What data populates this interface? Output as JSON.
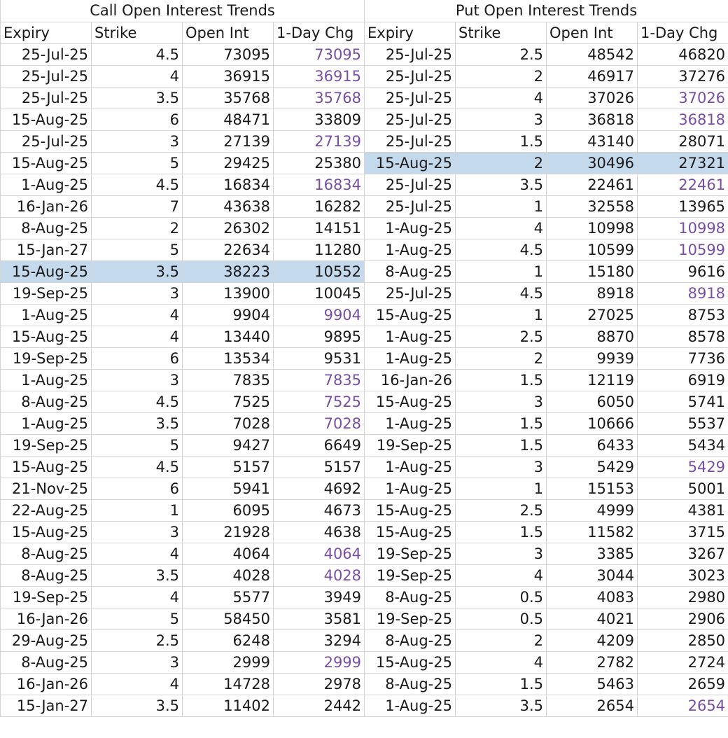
{
  "tables": [
    {
      "title": "Call Open Interest Trends",
      "headers": [
        "Expiry",
        "Strike",
        "Open Int",
        "1-Day Chg"
      ],
      "highlight_row": 10,
      "rows": [
        {
          "expiry": "25-Jul-25",
          "strike": "4.5",
          "open_int": "73095",
          "chg": "73095",
          "new": true
        },
        {
          "expiry": "25-Jul-25",
          "strike": "4",
          "open_int": "36915",
          "chg": "36915",
          "new": true
        },
        {
          "expiry": "25-Jul-25",
          "strike": "3.5",
          "open_int": "35768",
          "chg": "35768",
          "new": true
        },
        {
          "expiry": "15-Aug-25",
          "strike": "6",
          "open_int": "48471",
          "chg": "33809",
          "new": false
        },
        {
          "expiry": "25-Jul-25",
          "strike": "3",
          "open_int": "27139",
          "chg": "27139",
          "new": true
        },
        {
          "expiry": "15-Aug-25",
          "strike": "5",
          "open_int": "29425",
          "chg": "25380",
          "new": false
        },
        {
          "expiry": "1-Aug-25",
          "strike": "4.5",
          "open_int": "16834",
          "chg": "16834",
          "new": true
        },
        {
          "expiry": "16-Jan-26",
          "strike": "7",
          "open_int": "43638",
          "chg": "16282",
          "new": false
        },
        {
          "expiry": "8-Aug-25",
          "strike": "2",
          "open_int": "26302",
          "chg": "14151",
          "new": false
        },
        {
          "expiry": "15-Jan-27",
          "strike": "5",
          "open_int": "22634",
          "chg": "11280",
          "new": false
        },
        {
          "expiry": "15-Aug-25",
          "strike": "3.5",
          "open_int": "38223",
          "chg": "10552",
          "new": false
        },
        {
          "expiry": "19-Sep-25",
          "strike": "3",
          "open_int": "13900",
          "chg": "10045",
          "new": false
        },
        {
          "expiry": "1-Aug-25",
          "strike": "4",
          "open_int": "9904",
          "chg": "9904",
          "new": true
        },
        {
          "expiry": "15-Aug-25",
          "strike": "4",
          "open_int": "13440",
          "chg": "9895",
          "new": false
        },
        {
          "expiry": "19-Sep-25",
          "strike": "6",
          "open_int": "13534",
          "chg": "9531",
          "new": false
        },
        {
          "expiry": "1-Aug-25",
          "strike": "3",
          "open_int": "7835",
          "chg": "7835",
          "new": true
        },
        {
          "expiry": "8-Aug-25",
          "strike": "4.5",
          "open_int": "7525",
          "chg": "7525",
          "new": true
        },
        {
          "expiry": "1-Aug-25",
          "strike": "3.5",
          "open_int": "7028",
          "chg": "7028",
          "new": true
        },
        {
          "expiry": "19-Sep-25",
          "strike": "5",
          "open_int": "9427",
          "chg": "6649",
          "new": false
        },
        {
          "expiry": "15-Aug-25",
          "strike": "4.5",
          "open_int": "5157",
          "chg": "5157",
          "new": false
        },
        {
          "expiry": "21-Nov-25",
          "strike": "6",
          "open_int": "5941",
          "chg": "4692",
          "new": false
        },
        {
          "expiry": "22-Aug-25",
          "strike": "1",
          "open_int": "6095",
          "chg": "4673",
          "new": false
        },
        {
          "expiry": "15-Aug-25",
          "strike": "3",
          "open_int": "21928",
          "chg": "4638",
          "new": false
        },
        {
          "expiry": "8-Aug-25",
          "strike": "4",
          "open_int": "4064",
          "chg": "4064",
          "new": true
        },
        {
          "expiry": "8-Aug-25",
          "strike": "3.5",
          "open_int": "4028",
          "chg": "4028",
          "new": true
        },
        {
          "expiry": "19-Sep-25",
          "strike": "4",
          "open_int": "5577",
          "chg": "3949",
          "new": false
        },
        {
          "expiry": "16-Jan-26",
          "strike": "5",
          "open_int": "58450",
          "chg": "3581",
          "new": false
        },
        {
          "expiry": "29-Aug-25",
          "strike": "2.5",
          "open_int": "6248",
          "chg": "3294",
          "new": false
        },
        {
          "expiry": "8-Aug-25",
          "strike": "3",
          "open_int": "2999",
          "chg": "2999",
          "new": true
        },
        {
          "expiry": "16-Jan-26",
          "strike": "4",
          "open_int": "14728",
          "chg": "2978",
          "new": false
        },
        {
          "expiry": "15-Jan-27",
          "strike": "3.5",
          "open_int": "11402",
          "chg": "2442",
          "new": false
        }
      ]
    },
    {
      "title": "Put Open Interest Trends",
      "headers": [
        "Expiry",
        "Strike",
        "Open Int",
        "1-Day Chg"
      ],
      "highlight_row": 5,
      "rows": [
        {
          "expiry": "25-Jul-25",
          "strike": "2.5",
          "open_int": "48542",
          "chg": "46820",
          "new": false
        },
        {
          "expiry": "25-Jul-25",
          "strike": "2",
          "open_int": "46917",
          "chg": "37276",
          "new": false
        },
        {
          "expiry": "25-Jul-25",
          "strike": "4",
          "open_int": "37026",
          "chg": "37026",
          "new": true
        },
        {
          "expiry": "25-Jul-25",
          "strike": "3",
          "open_int": "36818",
          "chg": "36818",
          "new": true
        },
        {
          "expiry": "25-Jul-25",
          "strike": "1.5",
          "open_int": "43140",
          "chg": "28071",
          "new": false
        },
        {
          "expiry": "15-Aug-25",
          "strike": "2",
          "open_int": "30496",
          "chg": "27321",
          "new": false
        },
        {
          "expiry": "25-Jul-25",
          "strike": "3.5",
          "open_int": "22461",
          "chg": "22461",
          "new": true
        },
        {
          "expiry": "25-Jul-25",
          "strike": "1",
          "open_int": "32558",
          "chg": "13965",
          "new": false
        },
        {
          "expiry": "1-Aug-25",
          "strike": "4",
          "open_int": "10998",
          "chg": "10998",
          "new": true
        },
        {
          "expiry": "1-Aug-25",
          "strike": "4.5",
          "open_int": "10599",
          "chg": "10599",
          "new": true
        },
        {
          "expiry": "8-Aug-25",
          "strike": "1",
          "open_int": "15180",
          "chg": "9616",
          "new": false
        },
        {
          "expiry": "25-Jul-25",
          "strike": "4.5",
          "open_int": "8918",
          "chg": "8918",
          "new": true
        },
        {
          "expiry": "15-Aug-25",
          "strike": "1",
          "open_int": "27025",
          "chg": "8753",
          "new": false
        },
        {
          "expiry": "1-Aug-25",
          "strike": "2.5",
          "open_int": "8870",
          "chg": "8578",
          "new": false
        },
        {
          "expiry": "1-Aug-25",
          "strike": "2",
          "open_int": "9939",
          "chg": "7736",
          "new": false
        },
        {
          "expiry": "16-Jan-26",
          "strike": "1.5",
          "open_int": "12119",
          "chg": "6919",
          "new": false
        },
        {
          "expiry": "15-Aug-25",
          "strike": "3",
          "open_int": "6050",
          "chg": "5741",
          "new": false
        },
        {
          "expiry": "1-Aug-25",
          "strike": "1.5",
          "open_int": "10666",
          "chg": "5537",
          "new": false
        },
        {
          "expiry": "19-Sep-25",
          "strike": "1.5",
          "open_int": "6433",
          "chg": "5434",
          "new": false
        },
        {
          "expiry": "1-Aug-25",
          "strike": "3",
          "open_int": "5429",
          "chg": "5429",
          "new": true
        },
        {
          "expiry": "1-Aug-25",
          "strike": "1",
          "open_int": "15153",
          "chg": "5001",
          "new": false
        },
        {
          "expiry": "15-Aug-25",
          "strike": "2.5",
          "open_int": "4999",
          "chg": "4381",
          "new": false
        },
        {
          "expiry": "15-Aug-25",
          "strike": "1.5",
          "open_int": "11582",
          "chg": "3715",
          "new": false
        },
        {
          "expiry": "19-Sep-25",
          "strike": "3",
          "open_int": "3385",
          "chg": "3267",
          "new": false
        },
        {
          "expiry": "19-Sep-25",
          "strike": "4",
          "open_int": "3044",
          "chg": "3023",
          "new": false
        },
        {
          "expiry": "8-Aug-25",
          "strike": "0.5",
          "open_int": "4083",
          "chg": "2980",
          "new": false
        },
        {
          "expiry": "19-Sep-25",
          "strike": "0.5",
          "open_int": "4021",
          "chg": "2906",
          "new": false
        },
        {
          "expiry": "8-Aug-25",
          "strike": "2",
          "open_int": "4209",
          "chg": "2850",
          "new": false
        },
        {
          "expiry": "15-Aug-25",
          "strike": "4",
          "open_int": "2782",
          "chg": "2724",
          "new": false
        },
        {
          "expiry": "8-Aug-25",
          "strike": "1.5",
          "open_int": "5463",
          "chg": "2659",
          "new": false
        },
        {
          "expiry": "1-Aug-25",
          "strike": "3.5",
          "open_int": "2654",
          "chg": "2654",
          "new": true
        }
      ]
    }
  ]
}
